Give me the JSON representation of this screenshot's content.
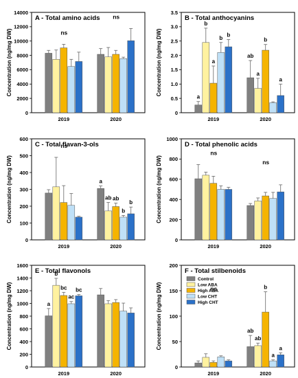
{
  "figure": {
    "legend_colors": [
      "#808080",
      "#fff2a0",
      "#f5b400",
      "#bfe0f7",
      "#2b71c8"
    ]
  },
  "chart_data": [
    {
      "type": "bar",
      "title": "A - Total amino acids",
      "ylabel": "Concentration (ng/mg DW)",
      "categories": [
        "2019",
        "2020"
      ],
      "ylim": [
        0,
        14000
      ],
      "yticks": [
        0,
        2000,
        4000,
        6000,
        8000,
        10000,
        12000,
        14000
      ],
      "series": [
        {
          "name": "Control",
          "values": [
            8300,
            8150
          ],
          "errors": [
            400,
            800
          ]
        },
        {
          "name": "Low ABA",
          "values": [
            7450,
            7800
          ],
          "errors": [
            1300,
            1300
          ]
        },
        {
          "name": "High ABA",
          "values": [
            9050,
            8150
          ],
          "errors": [
            500,
            550
          ]
        },
        {
          "name": "Low CHT",
          "values": [
            6450,
            7550
          ],
          "errors": [
            1000,
            200
          ]
        },
        {
          "name": "High CHT",
          "values": [
            7150,
            10050
          ],
          "errors": [
            1300,
            1700
          ]
        }
      ],
      "annotations": [
        [
          "ns",
          "",
          "",
          "",
          ""
        ],
        [
          "ns",
          "",
          "",
          "",
          ""
        ]
      ],
      "legend": false
    },
    {
      "type": "bar",
      "title": "B - Total anthocyanins",
      "ylabel": "Concentration (ng/mg DW)",
      "categories": [
        "2019",
        "2020"
      ],
      "ylim": [
        0,
        3.5
      ],
      "yticks": [
        0,
        0.5,
        1.0,
        1.5,
        2.0,
        2.5,
        3.0,
        3.5
      ],
      "series": [
        {
          "name": "Control",
          "values": [
            0.27,
            1.22
          ],
          "errors": [
            0.12,
            0.6
          ]
        },
        {
          "name": "Low ABA",
          "values": [
            2.45,
            0.85
          ],
          "errors": [
            0.5,
            0.35
          ]
        },
        {
          "name": "High ABA",
          "values": [
            1.03,
            2.18
          ],
          "errors": [
            0.6,
            0.2
          ]
        },
        {
          "name": "Low CHT",
          "values": [
            2.1,
            0.35
          ],
          "errors": [
            0.35,
            0.03
          ]
        },
        {
          "name": "High CHT",
          "values": [
            2.3,
            0.6
          ],
          "errors": [
            0.25,
            0.4
          ]
        }
      ],
      "annotations": [
        [
          "a",
          "b",
          "a",
          "b",
          "b"
        ],
        [
          "ab",
          "a",
          "b",
          "",
          "a"
        ]
      ],
      "legend": false
    },
    {
      "type": "bar",
      "title": "C - Total flavan-3-ols",
      "ylabel": "Concentration (ng/mg DW)",
      "categories": [
        "2019",
        "2020"
      ],
      "ylim": [
        0,
        600
      ],
      "yticks": [
        0,
        100,
        200,
        300,
        400,
        500,
        600
      ],
      "series": [
        {
          "name": "Control",
          "values": [
            278,
            305
          ],
          "errors": [
            20,
            15
          ]
        },
        {
          "name": "Low ABA",
          "values": [
            315,
            172
          ],
          "errors": [
            175,
            50
          ]
        },
        {
          "name": "High ABA",
          "values": [
            222,
            198
          ],
          "errors": [
            100,
            20
          ]
        },
        {
          "name": "Low CHT",
          "values": [
            205,
            135
          ],
          "errors": [
            70,
            10
          ]
        },
        {
          "name": "High CHT",
          "values": [
            135,
            155
          ],
          "errors": [
            5,
            40
          ]
        }
      ],
      "annotations": [
        [
          "ns",
          "",
          "",
          "",
          ""
        ],
        [
          "a",
          "ab",
          "ab",
          "b",
          "b"
        ]
      ],
      "legend": false
    },
    {
      "type": "bar",
      "title": "D - Total phenolic acids",
      "ylabel": "Concentration (ng/mg DW)",
      "categories": [
        "2019",
        "2020"
      ],
      "ylim": [
        0,
        1000
      ],
      "yticks": [
        0,
        200,
        400,
        600,
        800,
        1000
      ],
      "series": [
        {
          "name": "Control",
          "values": [
            605,
            340
          ],
          "errors": [
            140,
            20
          ]
        },
        {
          "name": "Low ABA",
          "values": [
            640,
            385
          ],
          "errors": [
            30,
            30
          ]
        },
        {
          "name": "High ABA",
          "values": [
            560,
            435
          ],
          "errors": [
            70,
            35
          ]
        },
        {
          "name": "Low CHT",
          "values": [
            500,
            410
          ],
          "errors": [
            35,
            60
          ]
        },
        {
          "name": "High CHT",
          "values": [
            500,
            475
          ],
          "errors": [
            20,
            70
          ]
        }
      ],
      "annotations": [
        [
          "ns",
          "",
          "",
          "",
          ""
        ],
        [
          "ns",
          "",
          "",
          "",
          ""
        ]
      ],
      "legend": false
    },
    {
      "type": "bar",
      "title": "E - Total flavonols",
      "ylabel": "Concentration (ng/mg DW)",
      "categories": [
        "2019",
        "2020"
      ],
      "ylim": [
        0,
        1600
      ],
      "yticks": [
        0,
        200,
        400,
        600,
        800,
        1000,
        1200,
        1400,
        1600
      ],
      "series": [
        {
          "name": "Control",
          "values": [
            805,
            1135
          ],
          "errors": [
            115,
            100
          ]
        },
        {
          "name": "Low ABA",
          "values": [
            1285,
            995
          ],
          "errors": [
            110,
            50
          ]
        },
        {
          "name": "High ABA",
          "values": [
            1125,
            1015
          ],
          "errors": [
            50,
            45
          ]
        },
        {
          "name": "Low CHT",
          "values": [
            995,
            880
          ],
          "errors": [
            35,
            125
          ]
        },
        {
          "name": "High CHT",
          "values": [
            1120,
            850
          ],
          "errors": [
            20,
            80
          ]
        }
      ],
      "annotations": [
        [
          "a",
          "b",
          "bc",
          "ac",
          "bc"
        ],
        [
          "",
          "",
          "",
          "",
          ""
        ]
      ],
      "legend": false
    },
    {
      "type": "bar",
      "title": "F - Total stilbenoids",
      "ylabel": "Concentration (ng/mg DW)",
      "categories": [
        "2019",
        "2020"
      ],
      "ylim": [
        0,
        200
      ],
      "yticks": [
        0,
        50,
        100,
        150,
        200
      ],
      "series": [
        {
          "name": "Control",
          "values": [
            8,
            40
          ],
          "errors": [
            4,
            22
          ]
        },
        {
          "name": "Low ABA",
          "values": [
            19,
            42
          ],
          "errors": [
            7,
            5
          ]
        },
        {
          "name": "High ABA",
          "values": [
            9,
            108
          ],
          "errors": [
            3,
            40
          ]
        },
        {
          "name": "Low CHT",
          "values": [
            20,
            12
          ],
          "errors": [
            2,
            2
          ]
        },
        {
          "name": "High CHT",
          "values": [
            12,
            24
          ],
          "errors": [
            2,
            4
          ]
        }
      ],
      "annotations": [
        [
          "ns",
          "",
          "",
          "",
          ""
        ],
        [
          "ab",
          "ab",
          "b",
          "a",
          "a"
        ]
      ],
      "legend": true
    }
  ]
}
